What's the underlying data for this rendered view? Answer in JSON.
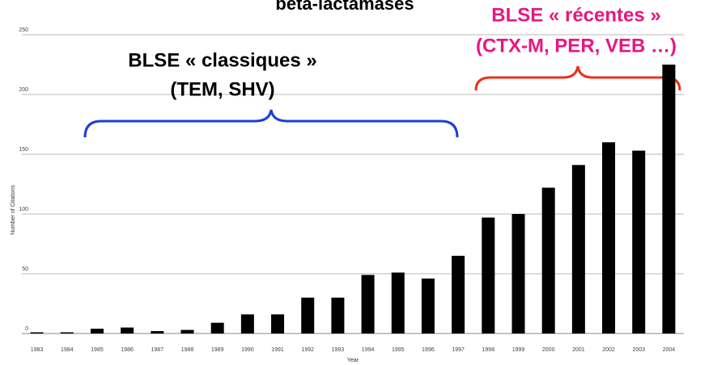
{
  "chart_data": {
    "type": "bar",
    "title": "bêta-lactamases",
    "x_label": "Year",
    "y_label": "Number of Citations",
    "categories": [
      "1983",
      "1984",
      "1985",
      "1986",
      "1987",
      "1988",
      "1989",
      "1990",
      "1991",
      "1992",
      "1993",
      "1994",
      "1995",
      "1996",
      "1997",
      "1998",
      "1999",
      "2000",
      "2001",
      "2002",
      "2003",
      "2004"
    ],
    "values": [
      1,
      1,
      4,
      5,
      2,
      3,
      9,
      16,
      16,
      30,
      30,
      49,
      51,
      46,
      65,
      97,
      100,
      122,
      141,
      160,
      153,
      225
    ],
    "color": "#000000",
    "ylim": [
      0,
      250
    ],
    "yticks": [
      0,
      50,
      100,
      150,
      200,
      250
    ],
    "grid": true,
    "annotations": [
      {
        "text": "BLSE « classiques »",
        "color": "#000000"
      },
      {
        "text": "(TEM, SHV)",
        "color": "#000000"
      },
      {
        "text": "BLSE « récentes »",
        "color": "#e8177f"
      },
      {
        "text": "(CTX-M, PER, VEB …)",
        "color": "#e8177f"
      }
    ]
  }
}
